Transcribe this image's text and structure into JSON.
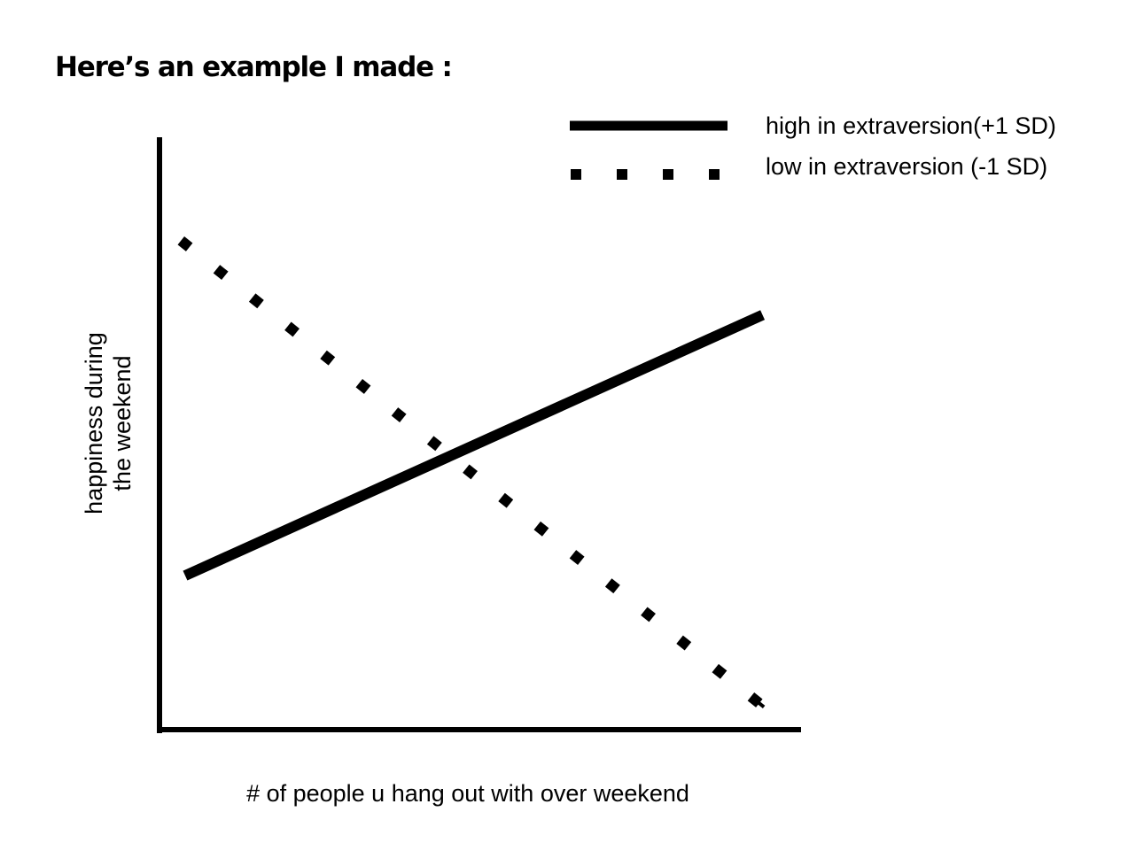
{
  "title": "Here’s an example I made :",
  "chart_data": {
    "type": "line",
    "title": "Here’s an example I made :",
    "xlabel": "# of people u hang out with over weekend",
    "ylabel_lines": [
      "happiness during",
      "the weekend"
    ],
    "xlim": [
      0,
      10
    ],
    "ylim": [
      0,
      10
    ],
    "grid": false,
    "legend_position": "top-right",
    "series": [
      {
        "name": "high in extraversion(+1 SD)",
        "style": "solid",
        "color": "#000000",
        "x": [
          0.4,
          9.4
        ],
        "y": [
          2.6,
          7.0
        ]
      },
      {
        "name": "low in extraversion (-1 SD)",
        "style": "dotted",
        "color": "#000000",
        "x": [
          0.4,
          9.4
        ],
        "y": [
          8.2,
          0.4
        ]
      }
    ]
  }
}
